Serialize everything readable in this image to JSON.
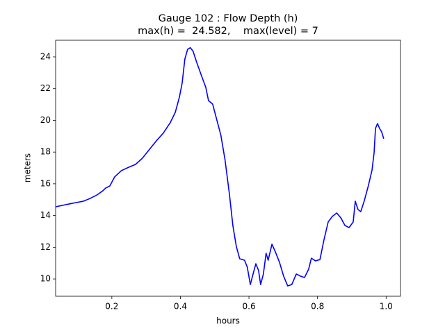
{
  "chart_data": {
    "type": "line",
    "title": "Gauge 102 : Flow Depth (h)",
    "subtitle": "max(h) =  24.582,    max(level) = 7",
    "xlabel": "hours",
    "ylabel": "meters",
    "xlim": [
      0.036,
      1.042
    ],
    "ylim": [
      8.91,
      25.05
    ],
    "xticks": [
      0.2,
      0.4,
      0.6,
      0.8,
      {
        "value": 1.0,
        "label": "1.0"
      }
    ],
    "yticks": [
      10,
      12,
      14,
      16,
      18,
      20,
      22,
      24
    ],
    "grid": false,
    "x": [
      0.036,
      0.056,
      0.076,
      0.097,
      0.117,
      0.137,
      0.157,
      0.174,
      0.182,
      0.194,
      0.208,
      0.228,
      0.249,
      0.269,
      0.289,
      0.31,
      0.33,
      0.35,
      0.37,
      0.385,
      0.397,
      0.405,
      0.413,
      0.421,
      0.429,
      0.437,
      0.447,
      0.462,
      0.474,
      0.482,
      0.494,
      0.502,
      0.518,
      0.53,
      0.543,
      0.553,
      0.563,
      0.573,
      0.587,
      0.595,
      0.604,
      0.612,
      0.62,
      0.628,
      0.634,
      0.642,
      0.65,
      0.656,
      0.667,
      0.677,
      0.689,
      0.701,
      0.713,
      0.725,
      0.738,
      0.75,
      0.762,
      0.774,
      0.782,
      0.794,
      0.807,
      0.819,
      0.831,
      0.843,
      0.856,
      0.868,
      0.88,
      0.892,
      0.904,
      0.91,
      0.918,
      0.926,
      0.936,
      0.948,
      0.959,
      0.965,
      0.969,
      0.975,
      0.981,
      0.987,
      0.993
    ],
    "series": [
      {
        "color": "#0000ff",
        "values": [
          14.55,
          14.64,
          14.73,
          14.82,
          14.9,
          15.08,
          15.3,
          15.56,
          15.73,
          15.86,
          16.43,
          16.83,
          17.04,
          17.22,
          17.61,
          18.18,
          18.71,
          19.19,
          19.84,
          20.5,
          21.46,
          22.34,
          23.87,
          24.48,
          24.58,
          24.35,
          23.69,
          22.78,
          22.08,
          21.24,
          21.03,
          20.37,
          19.06,
          17.53,
          15.34,
          13.37,
          12.06,
          11.27,
          11.18,
          10.75,
          9.65,
          10.31,
          10.96,
          10.53,
          9.65,
          10.31,
          11.62,
          11.18,
          12.19,
          11.71,
          11.05,
          10.18,
          9.56,
          9.65,
          10.31,
          10.18,
          10.09,
          10.61,
          11.31,
          11.14,
          11.22,
          12.49,
          13.59,
          13.94,
          14.16,
          13.85,
          13.37,
          13.24,
          13.59,
          14.9,
          14.38,
          14.24,
          14.9,
          15.86,
          16.87,
          17.96,
          19.49,
          19.8,
          19.49,
          19.28,
          18.84
        ]
      }
    ]
  }
}
